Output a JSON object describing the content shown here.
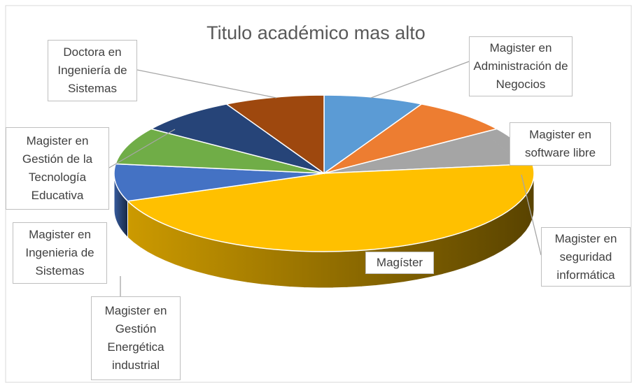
{
  "chart_data": {
    "type": "pie3d",
    "title": "Titulo académico mas alto",
    "categories": [
      "Magister en Administración de Negocios",
      "Magister en software libre",
      "Magister en seguridad informática",
      "Magíster",
      "Magister en Ingenieria de Sistemas",
      "Magister en Gestión Energética industrial",
      "Magister en Gestión de la Tecnología Educativa",
      "Doctora en Ingeniería de Sistemas"
    ],
    "values": [
      1,
      1,
      1,
      6,
      1,
      1,
      1,
      1
    ],
    "colors": [
      "#5b9bd5",
      "#ed7d31",
      "#a5a5a5",
      "#ffc000",
      "#4472c4",
      "#70ad47",
      "#264478",
      "#9e480e"
    ]
  }
}
